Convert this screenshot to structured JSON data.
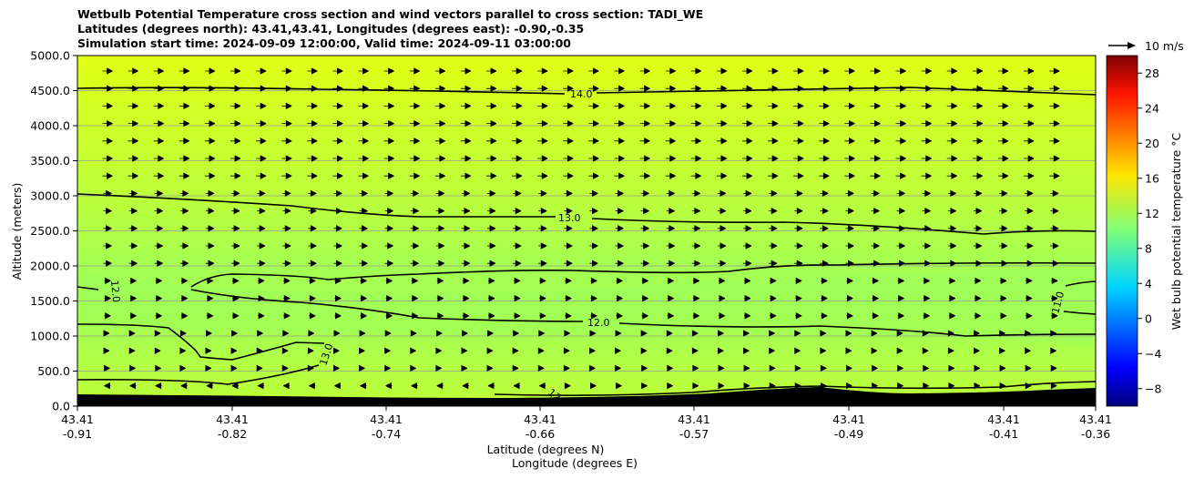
{
  "chart_data": {
    "type": "contour_cross_section",
    "title_lines": [
      "Wetbulb Potential Temperature cross section and wind vectors parallel to cross section: TADI_WE",
      "Latitudes (degrees north): 43.41,43.41, Longitudes (degrees east): -0.90,-0.35",
      "Simulation start time: 2024-09-09 12:00:00, Valid time: 2024-09-11 03:00:00"
    ],
    "ylabel": "Altitude (meters)",
    "xlabel_lat": "Latitude (degrees N)",
    "xlabel_lon": "Longitude (degrees E)",
    "ylim": [
      0,
      5000
    ],
    "yticks": [
      "0.0",
      "500.0",
      "1000.0",
      "1500.0",
      "2000.0",
      "2500.0",
      "3000.0",
      "3500.0",
      "4000.0",
      "4500.0",
      "5000.0"
    ],
    "xticks_lat": [
      "43.41",
      "43.41",
      "43.41",
      "43.41",
      "43.41",
      "43.41",
      "43.41",
      "43.41"
    ],
    "xticks_lon": [
      "-0.91",
      "-0.82",
      "-0.74",
      "-0.66",
      "-0.57",
      "-0.49",
      "-0.41",
      "-0.36"
    ],
    "colorbar": {
      "label": "Wet bulb potential temperature  °C",
      "range": [
        -10,
        30
      ],
      "ticks": [
        "−8",
        "−4",
        "0",
        "4",
        "8",
        "12",
        "16",
        "20",
        "24",
        "28"
      ]
    },
    "contour_labels": [
      "14.0",
      "13.0",
      "12.0",
      "12.0",
      "13.0",
      "11.0",
      "12.0"
    ],
    "quiver_key": "10 m/s",
    "terrain_color": "#000000"
  }
}
